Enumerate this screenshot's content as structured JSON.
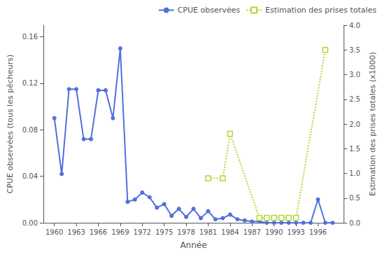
{
  "chart_data": {
    "type": "line",
    "xlabel": "Année",
    "ylabel": "CPUE observées (tous les pêcheurs)",
    "y2label": "Estimation des prises totales (x1000)",
    "series": [
      {
        "name": "CPUE observées",
        "axis": "y",
        "marker": "circle",
        "line_style": "solid",
        "x": [
          1960,
          1961,
          1962,
          1963,
          1964,
          1965,
          1966,
          1967,
          1968,
          1969,
          1970,
          1971,
          1972,
          1973,
          1974,
          1975,
          1976,
          1977,
          1978,
          1979,
          1980,
          1981,
          1982,
          1983,
          1984,
          1985,
          1986,
          1987,
          1988,
          1989,
          1990,
          1991,
          1992,
          1993,
          1994,
          1995,
          1996,
          1997,
          1998
        ],
        "values": [
          0.09,
          0.042,
          0.115,
          0.115,
          0.072,
          0.072,
          0.114,
          0.114,
          0.09,
          0.15,
          0.018,
          0.02,
          0.026,
          0.022,
          0.013,
          0.016,
          0.006,
          0.012,
          0.005,
          0.012,
          0.004,
          0.01,
          0.003,
          0.004,
          0.007,
          0.003,
          0.002,
          0.001,
          0.001,
          0.0,
          0.0,
          0.0,
          0.0,
          0.0,
          0.0,
          0.0,
          0.02,
          0.0,
          0.0
        ]
      },
      {
        "name": "Estimation des prises totales",
        "axis": "y2",
        "marker": "square",
        "line_style": "dotted",
        "x": [
          1981,
          1983,
          1984,
          1988,
          1989,
          1990,
          1991,
          1992,
          1993,
          1997
        ],
        "values": [
          0.9,
          0.9,
          1.8,
          0.1,
          0.1,
          0.1,
          0.1,
          0.1,
          0.1,
          3.5
        ]
      }
    ],
    "xlim": [
      1958.5,
      1999.5
    ],
    "xticks": [
      1960,
      1963,
      1966,
      1969,
      1972,
      1975,
      1978,
      1981,
      1984,
      1987,
      1990,
      1993,
      1996
    ],
    "ylim": [
      0.0,
      0.17
    ],
    "yticks": [
      {
        "value": 0,
        "label": "0.00"
      },
      {
        "value": 0.04,
        "label": "0.04"
      },
      {
        "value": 0.08,
        "label": "0.08"
      },
      {
        "value": 0.12,
        "label": "0.12"
      },
      {
        "value": 0.16,
        "label": "0.16"
      }
    ],
    "y2lim": [
      0.0,
      4.0
    ],
    "y2ticks": [
      {
        "value": 0,
        "label": "0.0"
      },
      0.5,
      {
        "value": 1,
        "label": "1.0"
      },
      1.5,
      {
        "value": 2,
        "label": "2.0"
      },
      2.5,
      {
        "value": 3,
        "label": "3.0"
      },
      3.5,
      {
        "value": 4,
        "label": "4.0"
      }
    ],
    "legend": "upper right",
    "grid": false
  }
}
